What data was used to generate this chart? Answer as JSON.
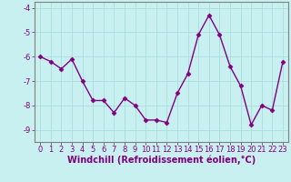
{
  "x": [
    0,
    1,
    2,
    3,
    4,
    5,
    6,
    7,
    8,
    9,
    10,
    11,
    12,
    13,
    14,
    15,
    16,
    17,
    18,
    19,
    20,
    21,
    22,
    23
  ],
  "y": [
    -6.0,
    -6.2,
    -6.5,
    -6.1,
    -7.0,
    -7.8,
    -7.8,
    -8.3,
    -7.7,
    -8.0,
    -8.6,
    -8.6,
    -8.7,
    -7.5,
    -6.7,
    -5.1,
    -4.3,
    -5.1,
    -6.4,
    -7.2,
    -8.8,
    -8.0,
    -8.2,
    -6.2
  ],
  "line_color": "#800080",
  "marker": "D",
  "marker_size": 2.5,
  "bg_color": "#c8f0f0",
  "grid_color": "#aadddd",
  "xlabel": "Windchill (Refroidissement éolien,°C)",
  "ylabel": "",
  "title": "",
  "ylim": [
    -9.5,
    -3.75
  ],
  "xlim": [
    -0.5,
    23.5
  ],
  "yticks": [
    -9,
    -8,
    -7,
    -6,
    -5,
    -4
  ],
  "xticks": [
    0,
    1,
    2,
    3,
    4,
    5,
    6,
    7,
    8,
    9,
    10,
    11,
    12,
    13,
    14,
    15,
    16,
    17,
    18,
    19,
    20,
    21,
    22,
    23
  ],
  "tick_fontsize": 6,
  "xlabel_fontsize": 7,
  "line_width": 1.0
}
